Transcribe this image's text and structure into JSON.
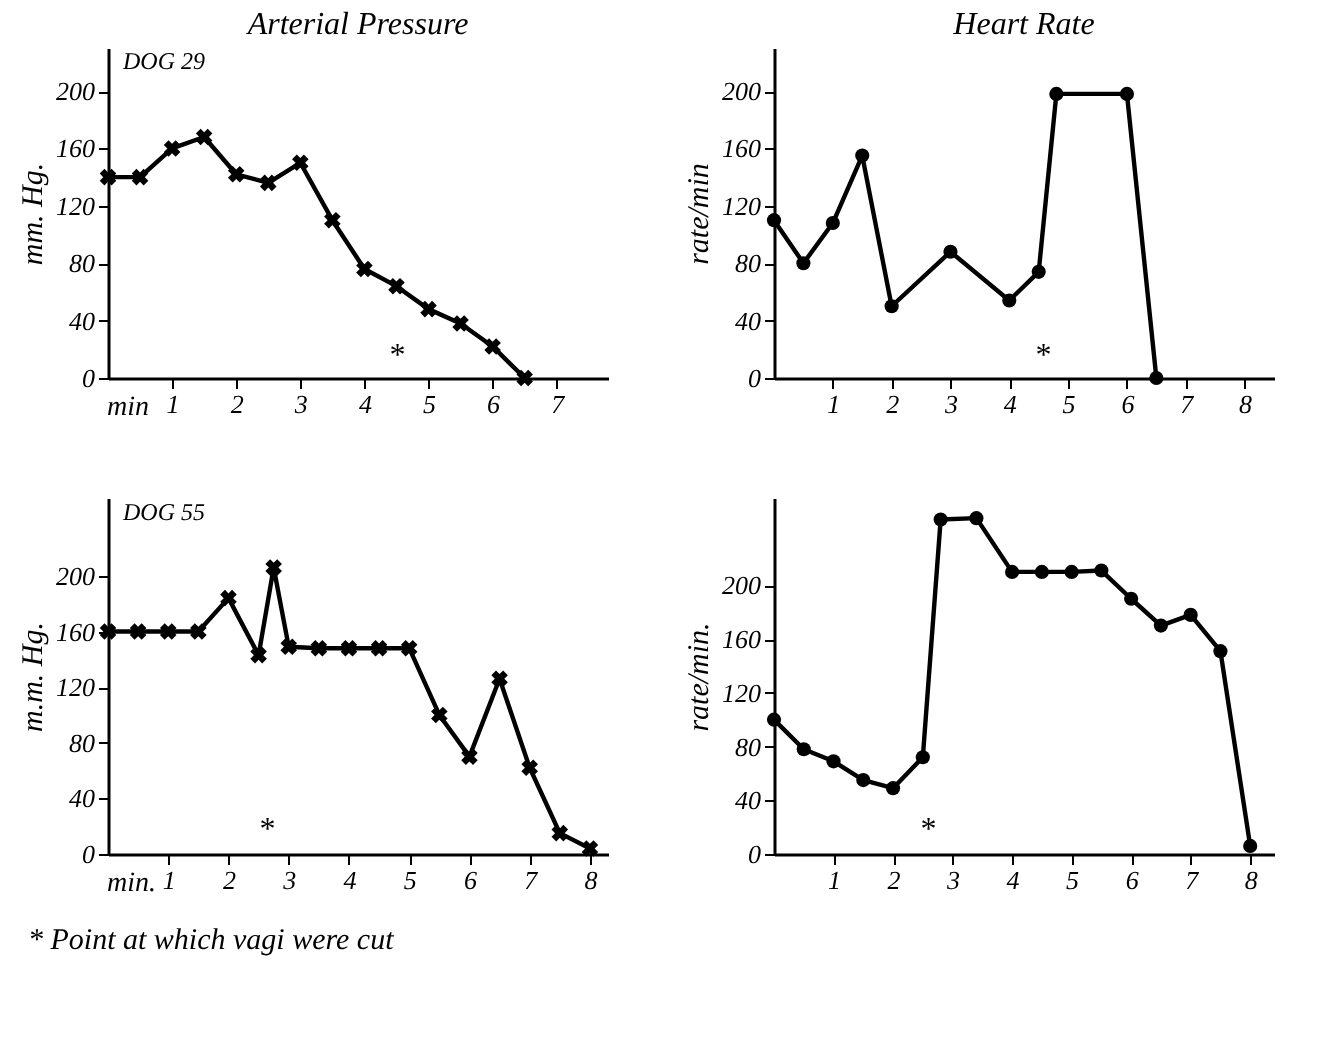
{
  "chart_data": [
    {
      "type": "line",
      "title": "Arterial Pressure",
      "ylabel": "mm. Hg.",
      "marker": "cross",
      "xlabel": "min",
      "annotations": [
        "DOG 29",
        "*"
      ],
      "x": [
        0,
        0.5,
        1,
        1.5,
        2,
        2.5,
        3,
        3.5,
        4,
        4.5,
        5,
        5.5,
        6,
        6.5
      ],
      "series": [
        {
          "color": "#000000",
          "values": [
            140,
            140,
            160,
            168,
            142,
            136,
            150,
            110,
            76,
            64,
            48,
            38,
            22,
            0
          ]
        }
      ],
      "xlim": [
        0,
        7.8
      ],
      "xticks": [
        1,
        2,
        3,
        4,
        5,
        6,
        7
      ],
      "ylim": [
        0,
        230
      ],
      "yticks": [
        0,
        40,
        80,
        120,
        160,
        200
      ]
    },
    {
      "type": "line",
      "title": "Heart Rate",
      "ylabel": "rate/min",
      "marker": "circle",
      "annotations": [
        "*"
      ],
      "x": [
        0,
        0.5,
        1,
        1.5,
        2,
        3,
        4,
        4.5,
        4.8,
        6,
        6.5
      ],
      "series": [
        {
          "color": "#000000",
          "values": [
            110,
            80,
            108,
            155,
            50,
            88,
            54,
            74,
            198,
            198,
            0
          ]
        }
      ],
      "xlim": [
        0,
        8.5
      ],
      "xticks": [
        1,
        2,
        3,
        4,
        5,
        6,
        7,
        8
      ],
      "ylim": [
        0,
        230
      ],
      "yticks": [
        0,
        40,
        80,
        120,
        160,
        200
      ]
    },
    {
      "type": "line",
      "ylabel": "m.m. Hg.",
      "marker": "cross",
      "xlabel": "min.",
      "annotations": [
        "DOG 55",
        "* Point at which vagi were cut",
        "*"
      ],
      "x": [
        0,
        0.5,
        1,
        1.5,
        2,
        2.5,
        2.75,
        3,
        3.5,
        4,
        4.5,
        5,
        5.5,
        6,
        6.5,
        7,
        7.5,
        8
      ],
      "series": [
        {
          "color": "#000000",
          "values": [
            160,
            160,
            160,
            160,
            184,
            143,
            206,
            149,
            148,
            148,
            148,
            148,
            100,
            70,
            126,
            62,
            15,
            4
          ]
        }
      ],
      "xlim": [
        0,
        8.3
      ],
      "xticks": [
        1,
        2,
        3,
        4,
        5,
        6,
        7,
        8
      ],
      "ylim": [
        0,
        256
      ],
      "yticks": [
        0,
        40,
        80,
        120,
        160,
        200
      ]
    },
    {
      "type": "line",
      "ylabel": "rate/min.",
      "marker": "circle",
      "annotations": [
        "*"
      ],
      "x": [
        0,
        0.5,
        1,
        1.5,
        2,
        2.5,
        2.8,
        3.4,
        4,
        4.5,
        5,
        5.5,
        6,
        6.5,
        7,
        7.5,
        8
      ],
      "series": [
        {
          "color": "#000000",
          "values": [
            100,
            78,
            69,
            55,
            49,
            72,
            249,
            250,
            210,
            210,
            210,
            211,
            190,
            170,
            178,
            151,
            6
          ]
        }
      ],
      "xlim": [
        0,
        8.4
      ],
      "xticks": [
        1,
        2,
        3,
        4,
        5,
        6,
        7,
        8
      ],
      "ylim": [
        0,
        265
      ],
      "yticks": [
        0,
        40,
        80,
        120,
        160,
        200
      ]
    }
  ]
}
